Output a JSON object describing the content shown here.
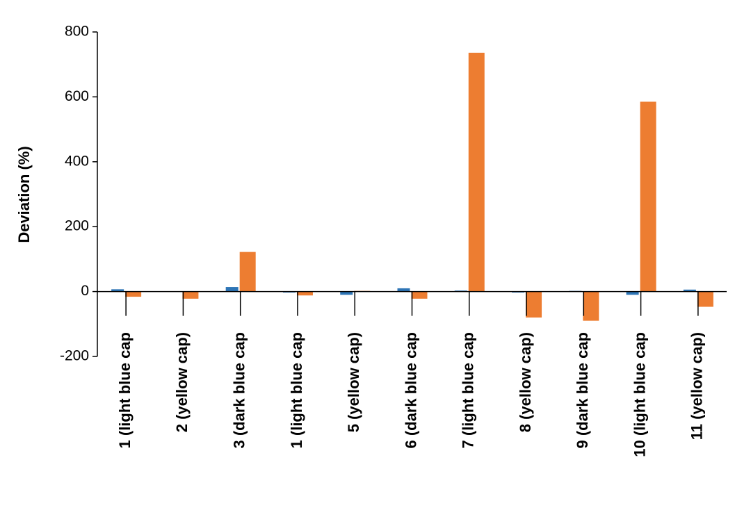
{
  "chart_data": {
    "type": "bar",
    "y_label": "Deviation (%)",
    "categories": [
      "1 (light blue cap",
      "2 (yellow cap)",
      "3 (dark blue cap",
      "1 (light blue cap",
      "5 (yellow cap)",
      "6 (dark blue cap",
      "7 (light blue cap",
      "8 (yellow cap)",
      "9 (dark blue cap",
      "10 (light blue cap",
      "11 (yellow cap)"
    ],
    "series": [
      {
        "color": "#2e75b6",
        "values": [
          7,
          0,
          14,
          -3,
          -10,
          10,
          3,
          -3,
          2,
          -10,
          6
        ]
      },
      {
        "color": "#ed7d31",
        "values": [
          -16,
          -22,
          122,
          -12,
          2,
          -22,
          736,
          -80,
          -90,
          585,
          -47
        ]
      }
    ],
    "ylim": [
      -200,
      800
    ],
    "yticks": [
      -200,
      0,
      200,
      400,
      600,
      800
    ],
    "grid": false
  }
}
